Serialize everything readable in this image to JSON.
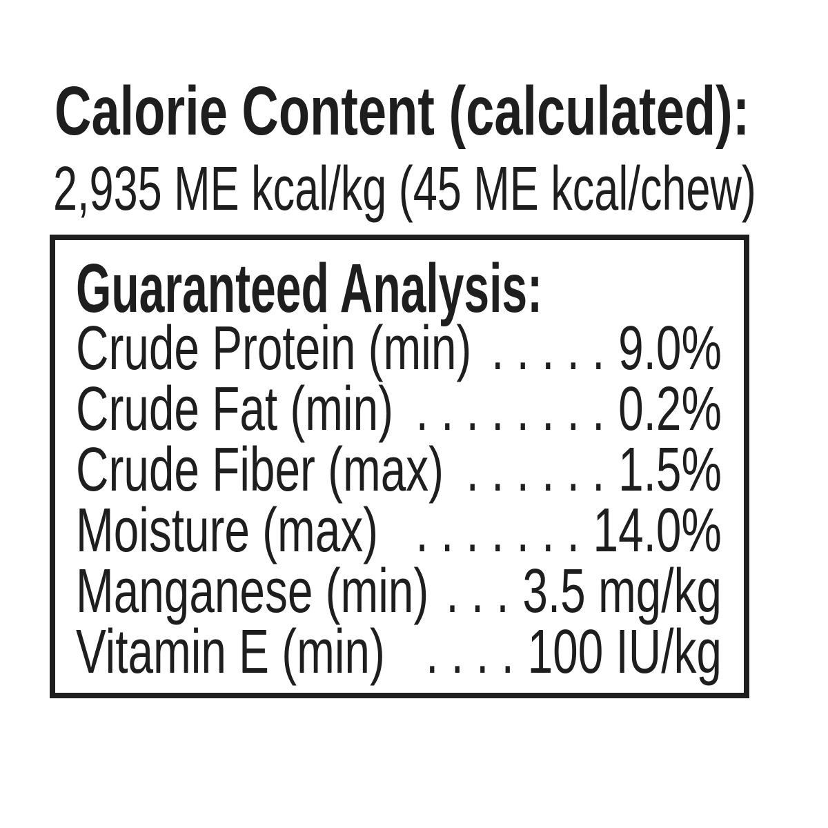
{
  "page": {
    "background_color": "#ffffff",
    "text_color": "#1e1e1e",
    "box_border_color": "#1e1e1e"
  },
  "calorie_content": {
    "title": "Calorie Content (calculated):",
    "value_line": "2,935 ME kcal/kg (45 ME kcal/chew)"
  },
  "guaranteed_analysis": {
    "heading": "Guaranteed Analysis:",
    "rows": [
      {
        "label": "Crude Protein (min)",
        "dots": ". . . . .",
        "value": "9.0%"
      },
      {
        "label": "Crude Fat (min)",
        "dots": ". . . . . . . .",
        "value": "0.2%"
      },
      {
        "label": "Crude Fiber (max)",
        "dots": ". . . . . .",
        "value": "1.5%"
      },
      {
        "label": "Moisture (max)",
        "dots": ". . . . . . .",
        "value": "14.0%"
      },
      {
        "label": "Manganese (min)",
        "dots": ". . .",
        "value": "3.5 mg/kg"
      },
      {
        "label": "Vitamin E (min)",
        "dots": ". . . .",
        "value": "100 IU/kg"
      }
    ]
  }
}
